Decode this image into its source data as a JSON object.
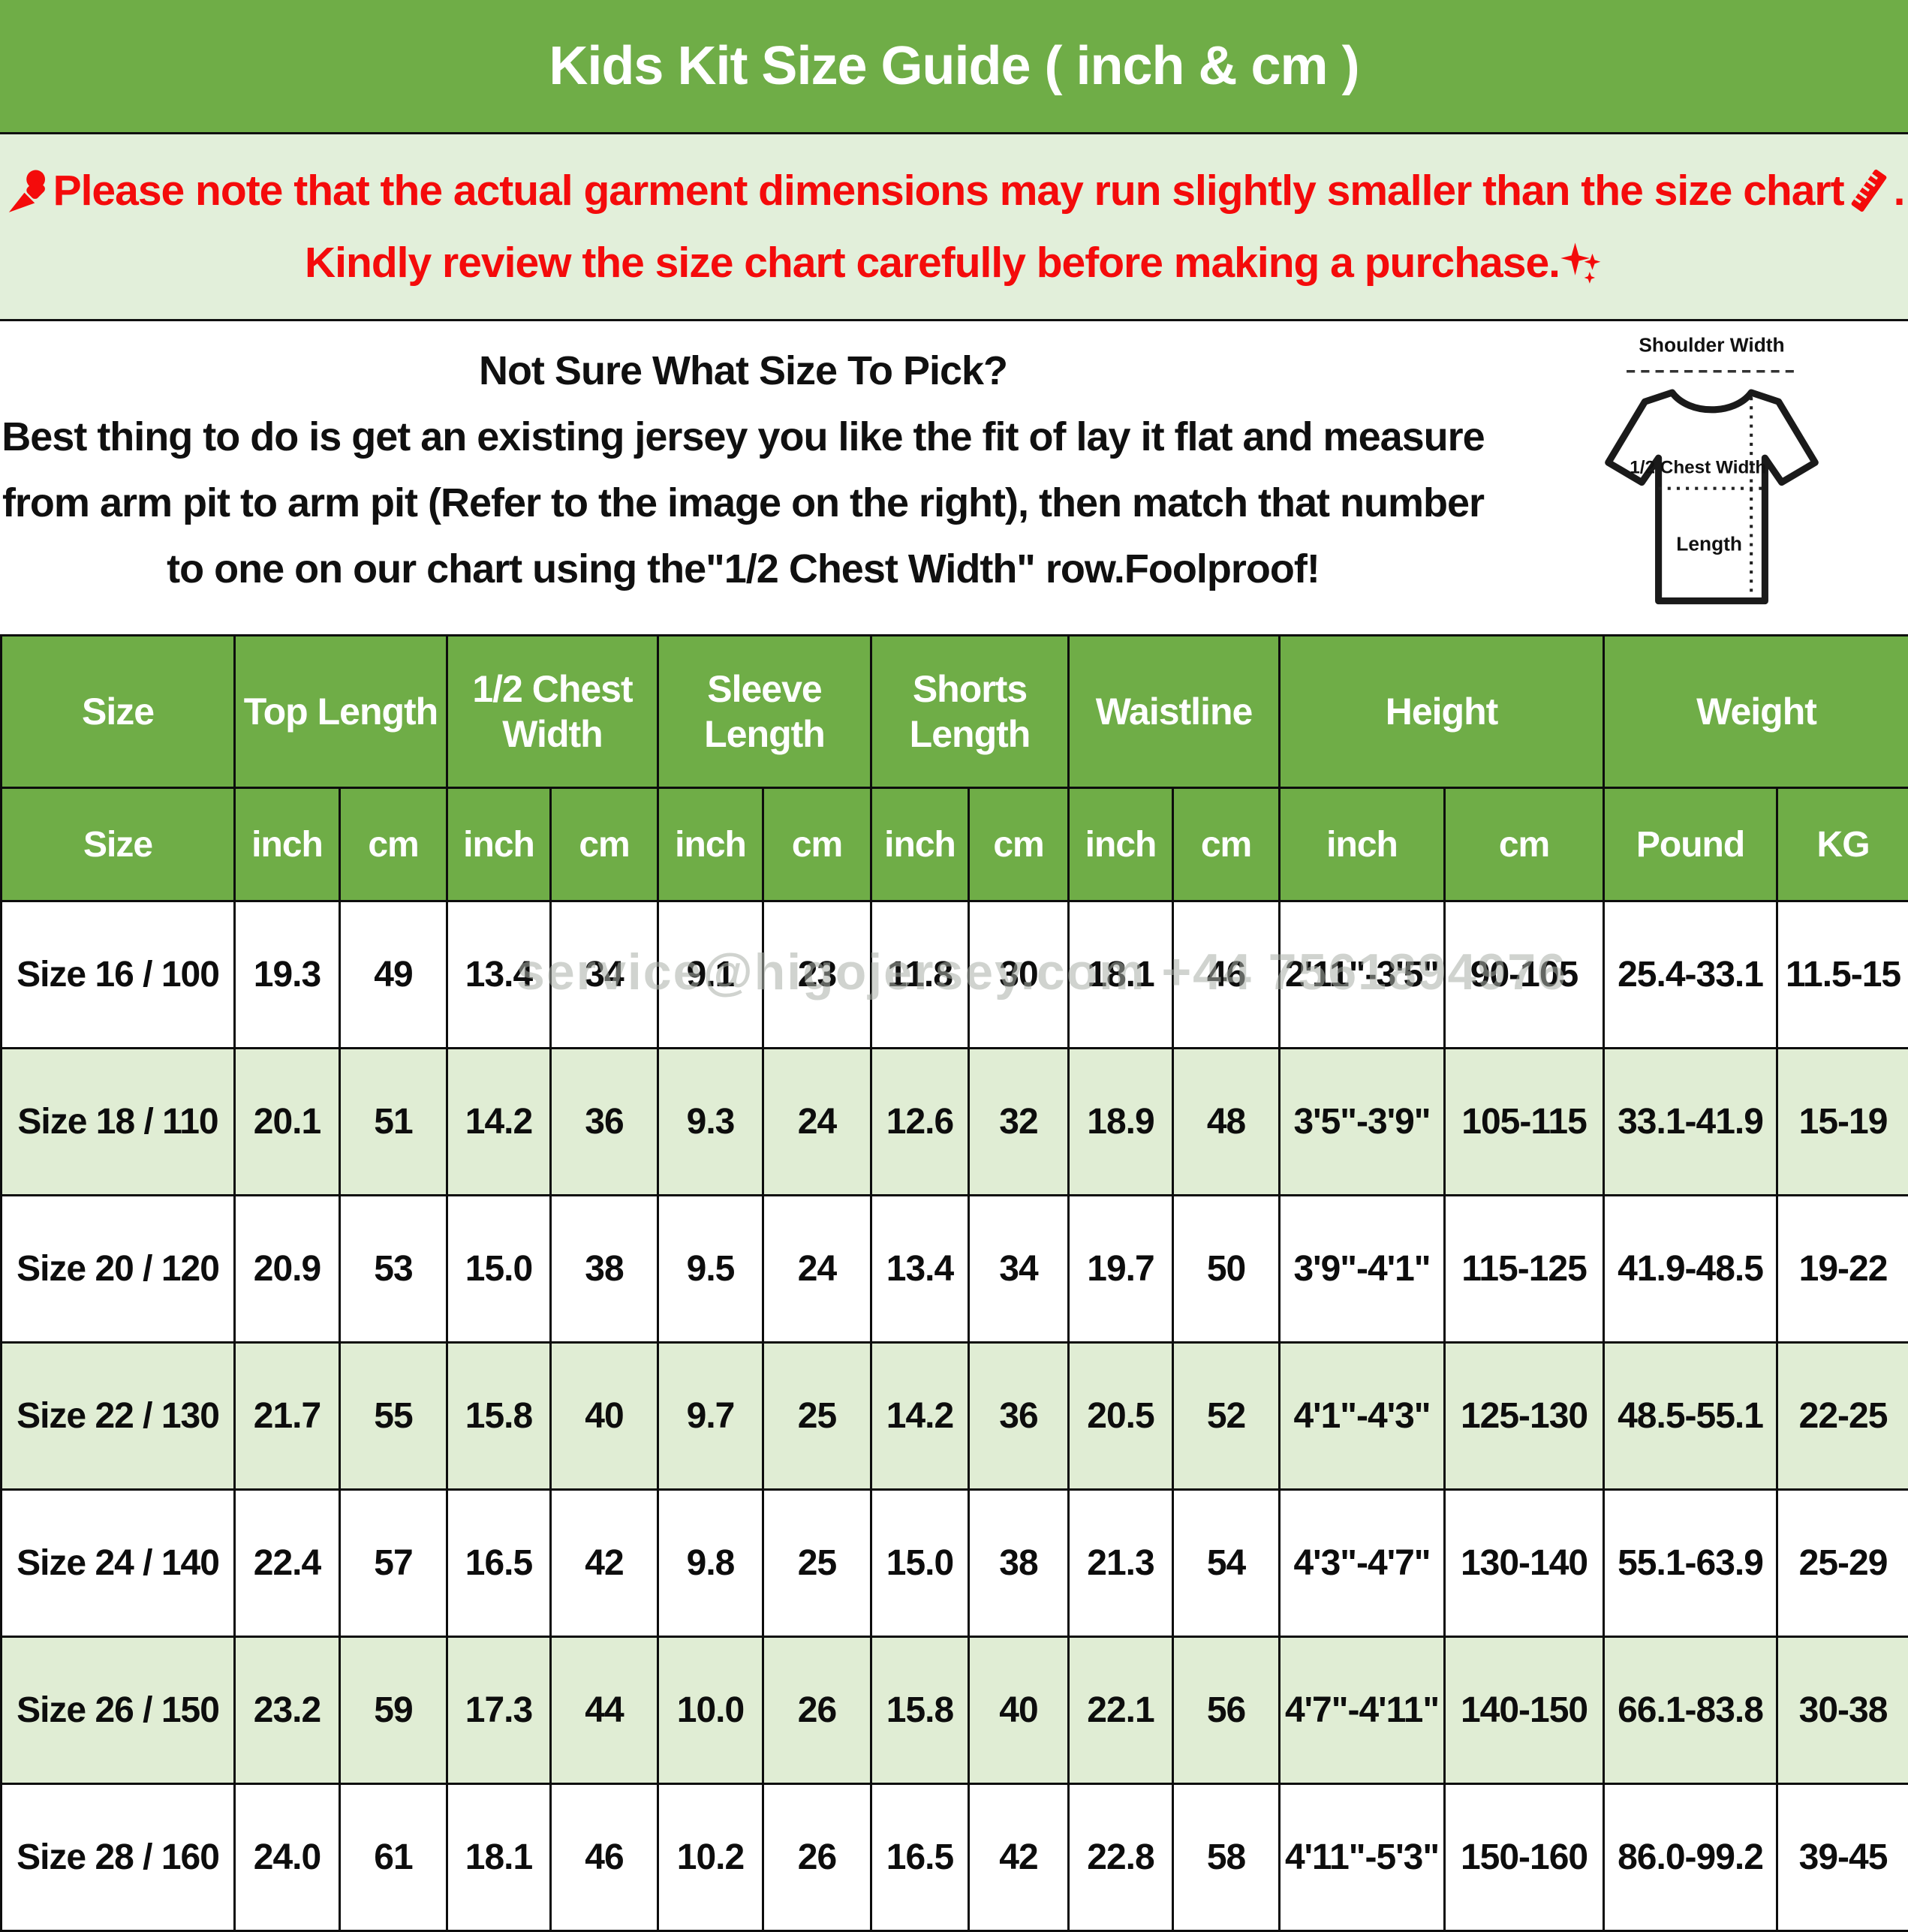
{
  "title": "Kids Kit Size Guide ( inch & cm )",
  "notice": {
    "line1_text": "Please note that the actual garment dimensions may run slightly smaller than the size chart ",
    "line1_end": ".",
    "line2_text": "Kindly review the size chart carefully before making a purchase.",
    "icons": {
      "pushpin": "pushpin-icon",
      "ruler": "ruler-icon",
      "sparkles": "sparkles-icon"
    }
  },
  "guide": {
    "heading": "Not Sure What Size To Pick?",
    "line2": "Best thing to do is get an existing jersey you like the fit of lay it flat and measure",
    "line3": "from arm pit to arm pit (Refer to the image on the right), then match that number",
    "line4": "to one on our chart using the\"1/2 Chest Width\" row.Foolproof!"
  },
  "diagram": {
    "shoulder_label": "Shoulder Width",
    "chest_label": "1/2 Chest Width",
    "length_label": "Length"
  },
  "table": {
    "groups": [
      {
        "label": "Size",
        "span": 1
      },
      {
        "label": "Top Length",
        "span": 2
      },
      {
        "label": "1/2 Chest Width",
        "span": 2
      },
      {
        "label": "Sleeve Length",
        "span": 2
      },
      {
        "label": "Shorts Length",
        "span": 2
      },
      {
        "label": "Waistline",
        "span": 2
      },
      {
        "label": "Height",
        "span": 2
      },
      {
        "label": "Weight",
        "span": 2
      }
    ],
    "sub_headers": [
      "Size",
      "inch",
      "cm",
      "inch",
      "cm",
      "inch",
      "cm",
      "inch",
      "cm",
      "inch",
      "cm",
      "inch",
      "cm",
      "Pound",
      "KG"
    ],
    "rows": [
      [
        "Size 16 / 100",
        "19.3",
        "49",
        "13.4",
        "34",
        "9.1",
        "23",
        "11.8",
        "30",
        "18.1",
        "46",
        "2'11\"-3'5\"",
        "90-105",
        "25.4-33.1",
        "11.5-15"
      ],
      [
        "Size 18 / 110",
        "20.1",
        "51",
        "14.2",
        "36",
        "9.3",
        "24",
        "12.6",
        "32",
        "18.9",
        "48",
        "3'5\"-3'9\"",
        "105-115",
        "33.1-41.9",
        "15-19"
      ],
      [
        "Size 20 / 120",
        "20.9",
        "53",
        "15.0",
        "38",
        "9.5",
        "24",
        "13.4",
        "34",
        "19.7",
        "50",
        "3'9\"-4'1\"",
        "115-125",
        "41.9-48.5",
        "19-22"
      ],
      [
        "Size 22 / 130",
        "21.7",
        "55",
        "15.8",
        "40",
        "9.7",
        "25",
        "14.2",
        "36",
        "20.5",
        "52",
        "4'1\"-4'3\"",
        "125-130",
        "48.5-55.1",
        "22-25"
      ],
      [
        "Size 24 / 140",
        "22.4",
        "57",
        "16.5",
        "42",
        "9.8",
        "25",
        "15.0",
        "38",
        "21.3",
        "54",
        "4'3\"-4'7\"",
        "130-140",
        "55.1-63.9",
        "25-29"
      ],
      [
        "Size 26 / 150",
        "23.2",
        "59",
        "17.3",
        "44",
        "10.0",
        "26",
        "15.8",
        "40",
        "22.1",
        "56",
        "4'7\"-4'11\"",
        "140-150",
        "66.1-83.8",
        "30-38"
      ],
      [
        "Size 28 / 160",
        "24.0",
        "61",
        "18.1",
        "46",
        "10.2",
        "26",
        "16.5",
        "42",
        "22.8",
        "58",
        "4'11\"-5'3\"",
        "150-160",
        "86.0-99.2",
        "39-45"
      ]
    ]
  },
  "watermark": "service@higojersey.com +44 7561894976",
  "colors": {
    "header_green": "#6fad47",
    "note_bg": "#e2efda",
    "row_alt": "#e0edd4",
    "alert_red": "#f40b0b"
  }
}
